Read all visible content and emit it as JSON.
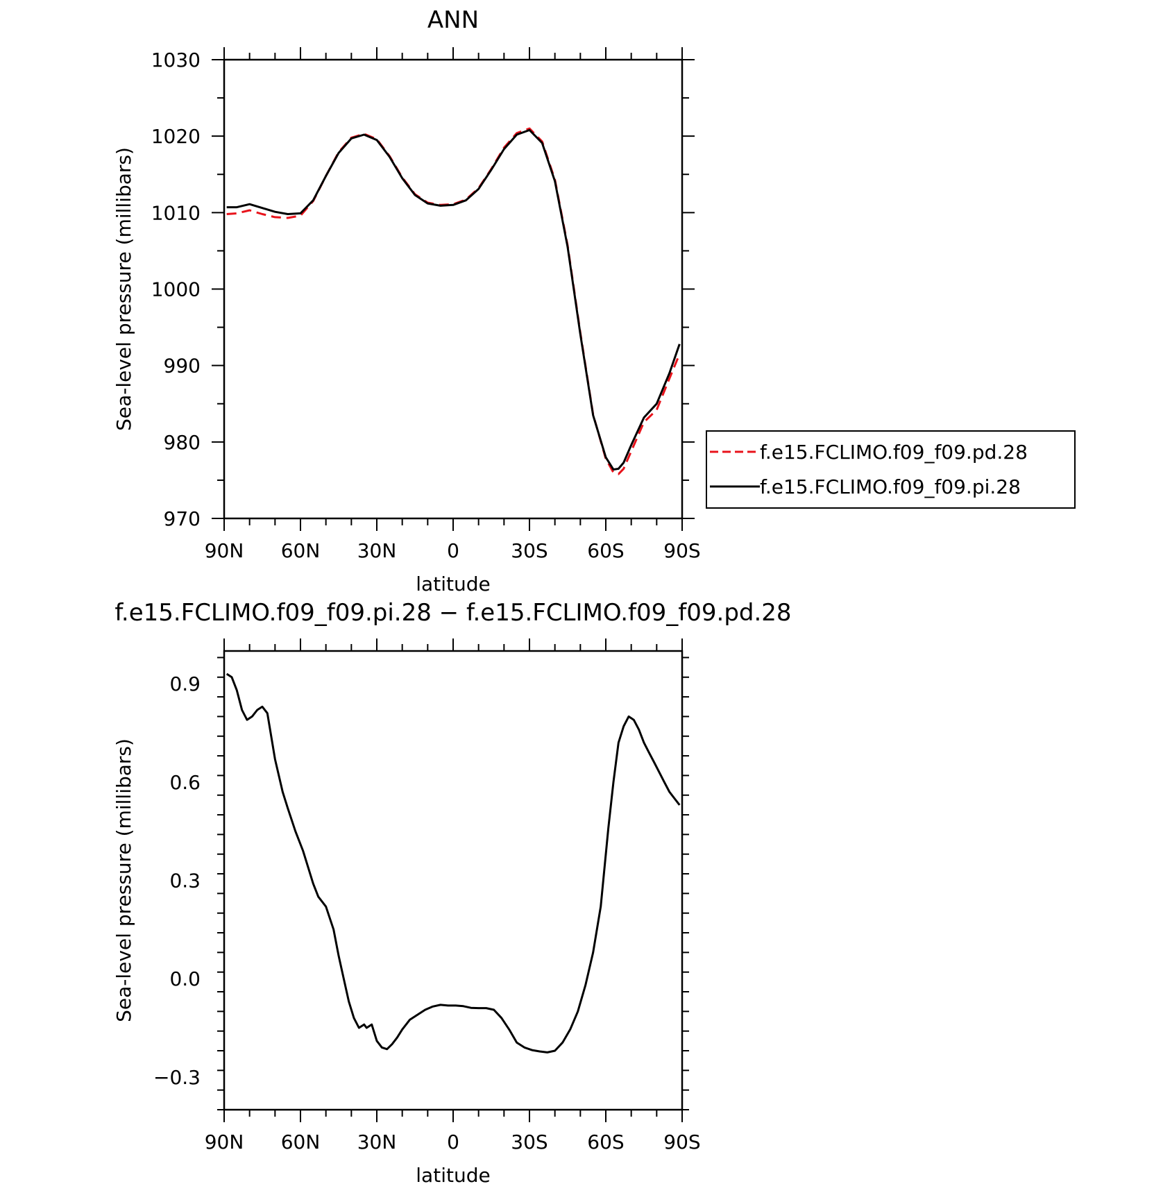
{
  "chart_data": [
    {
      "type": "line",
      "title": "ANN",
      "xlabel": "latitude",
      "ylabel": "Sea-level pressure (millibars)",
      "x_tick_labels": [
        "90N",
        "60N",
        "30N",
        "0",
        "30S",
        "60S",
        "90S"
      ],
      "y_tick_labels": [
        "970",
        "980",
        "990",
        "1000",
        "1010",
        "1020",
        "1030"
      ],
      "xlim": [
        90,
        -90
      ],
      "ylim": [
        970,
        1030
      ],
      "y_ticks": [
        970,
        980,
        990,
        1000,
        1010,
        1020,
        1030
      ],
      "x_ticks": [
        90,
        60,
        30,
        0,
        -30,
        -60,
        -90
      ],
      "legend_position": "right",
      "series": [
        {
          "name": "f.e15.FCLIMO.f09_f09.pd.28",
          "color": "#e8131b",
          "style": "dashed",
          "x": [
            89,
            85,
            80,
            75,
            70,
            65,
            60,
            55,
            50,
            45,
            40,
            35,
            30,
            25,
            20,
            15,
            10,
            5,
            0,
            -5,
            -10,
            -15,
            -20,
            -25,
            -30,
            -35,
            -40,
            -45,
            -50,
            -55,
            -60,
            -63,
            -65,
            -67,
            -70,
            -75,
            -80,
            -85,
            -89
          ],
          "y": [
            1009.8,
            1009.9,
            1010.3,
            1009.8,
            1009.4,
            1009.3,
            1009.6,
            1011.5,
            1014.8,
            1017.9,
            1019.8,
            1020.3,
            1019.6,
            1017.4,
            1014.6,
            1012.4,
            1011.3,
            1011.0,
            1011.1,
            1011.7,
            1013.2,
            1015.7,
            1018.5,
            1020.4,
            1021.0,
            1019.3,
            1014.3,
            1005.7,
            994.3,
            983.6,
            977.8,
            976.0,
            975.8,
            976.5,
            978.8,
            982.6,
            984.2,
            988.3,
            991.5
          ]
        },
        {
          "name": "f.e15.FCLIMO.f09_f09.pi.28",
          "color": "#000000",
          "style": "solid",
          "x": [
            89,
            85,
            80,
            75,
            70,
            65,
            60,
            55,
            50,
            45,
            40,
            35,
            30,
            25,
            20,
            15,
            10,
            5,
            0,
            -5,
            -10,
            -15,
            -20,
            -25,
            -30,
            -35,
            -40,
            -45,
            -50,
            -55,
            -60,
            -63,
            -65,
            -67,
            -70,
            -75,
            -80,
            -85,
            -89
          ],
          "y": [
            1010.7,
            1010.7,
            1011.1,
            1010.6,
            1010.1,
            1009.8,
            1009.9,
            1011.6,
            1014.8,
            1017.8,
            1019.7,
            1020.2,
            1019.5,
            1017.3,
            1014.5,
            1012.3,
            1011.2,
            1010.9,
            1011.0,
            1011.6,
            1013.1,
            1015.6,
            1018.3,
            1020.2,
            1020.8,
            1019.1,
            1014.1,
            1005.5,
            994.1,
            983.5,
            978.0,
            976.4,
            976.5,
            977.3,
            979.6,
            983.2,
            985.0,
            989.0,
            992.8
          ]
        }
      ]
    },
    {
      "type": "line",
      "title": "f.e15.FCLIMO.f09_f09.pi.28 − f.e15.FCLIMO.f09_f09.pd.28",
      "xlabel": "latitude",
      "ylabel": "Sea-level pressure (millibars)",
      "x_tick_labels": [
        "90N",
        "60N",
        "30N",
        "0",
        "30S",
        "60S",
        "90S"
      ],
      "y_tick_labels": [
        "−0.3",
        "0.0",
        "0.3",
        "0.6",
        "0.9"
      ],
      "xlim": [
        90,
        -90
      ],
      "ylim": [
        -0.4,
        1.0
      ],
      "y_ticks": [
        -0.3,
        0.0,
        0.3,
        0.6,
        0.9
      ],
      "x_ticks": [
        90,
        60,
        30,
        0,
        -30,
        -60,
        -90
      ],
      "series": [
        {
          "color": "#000000",
          "style": "solid",
          "x": [
            89,
            87,
            85,
            83,
            81,
            79,
            77,
            75,
            73,
            70,
            67,
            65,
            62,
            59,
            57,
            55,
            53,
            50,
            47,
            45,
            43,
            41,
            39,
            37,
            35,
            34,
            32,
            30,
            28,
            26,
            24,
            22,
            20,
            17,
            14,
            11,
            8,
            5,
            2,
            -1,
            -4,
            -7,
            -10,
            -13,
            -16,
            -19,
            -22,
            -25,
            -28,
            -31,
            -34,
            -37,
            -40,
            -43,
            -46,
            -49,
            -52,
            -55,
            -58,
            -61,
            -63,
            -65,
            -67,
            -69,
            -71,
            -73,
            -75,
            -77,
            -79,
            -81,
            -83,
            -85,
            -87,
            -89
          ],
          "y": [
            0.93,
            0.92,
            0.88,
            0.82,
            0.79,
            0.8,
            0.82,
            0.83,
            0.81,
            0.67,
            0.57,
            0.52,
            0.45,
            0.39,
            0.34,
            0.29,
            0.25,
            0.22,
            0.15,
            0.07,
            0.0,
            -0.07,
            -0.12,
            -0.15,
            -0.14,
            -0.15,
            -0.14,
            -0.19,
            -0.21,
            -0.215,
            -0.2,
            -0.18,
            -0.155,
            -0.125,
            -0.11,
            -0.095,
            -0.085,
            -0.08,
            -0.082,
            -0.082,
            -0.084,
            -0.089,
            -0.09,
            -0.09,
            -0.095,
            -0.12,
            -0.155,
            -0.195,
            -0.21,
            -0.218,
            -0.222,
            -0.225,
            -0.22,
            -0.195,
            -0.155,
            -0.1,
            -0.02,
            0.08,
            0.22,
            0.46,
            0.6,
            0.72,
            0.77,
            0.8,
            0.79,
            0.76,
            0.72,
            0.69,
            0.66,
            0.63,
            0.6,
            0.57,
            0.55,
            0.53
          ]
        }
      ]
    }
  ]
}
